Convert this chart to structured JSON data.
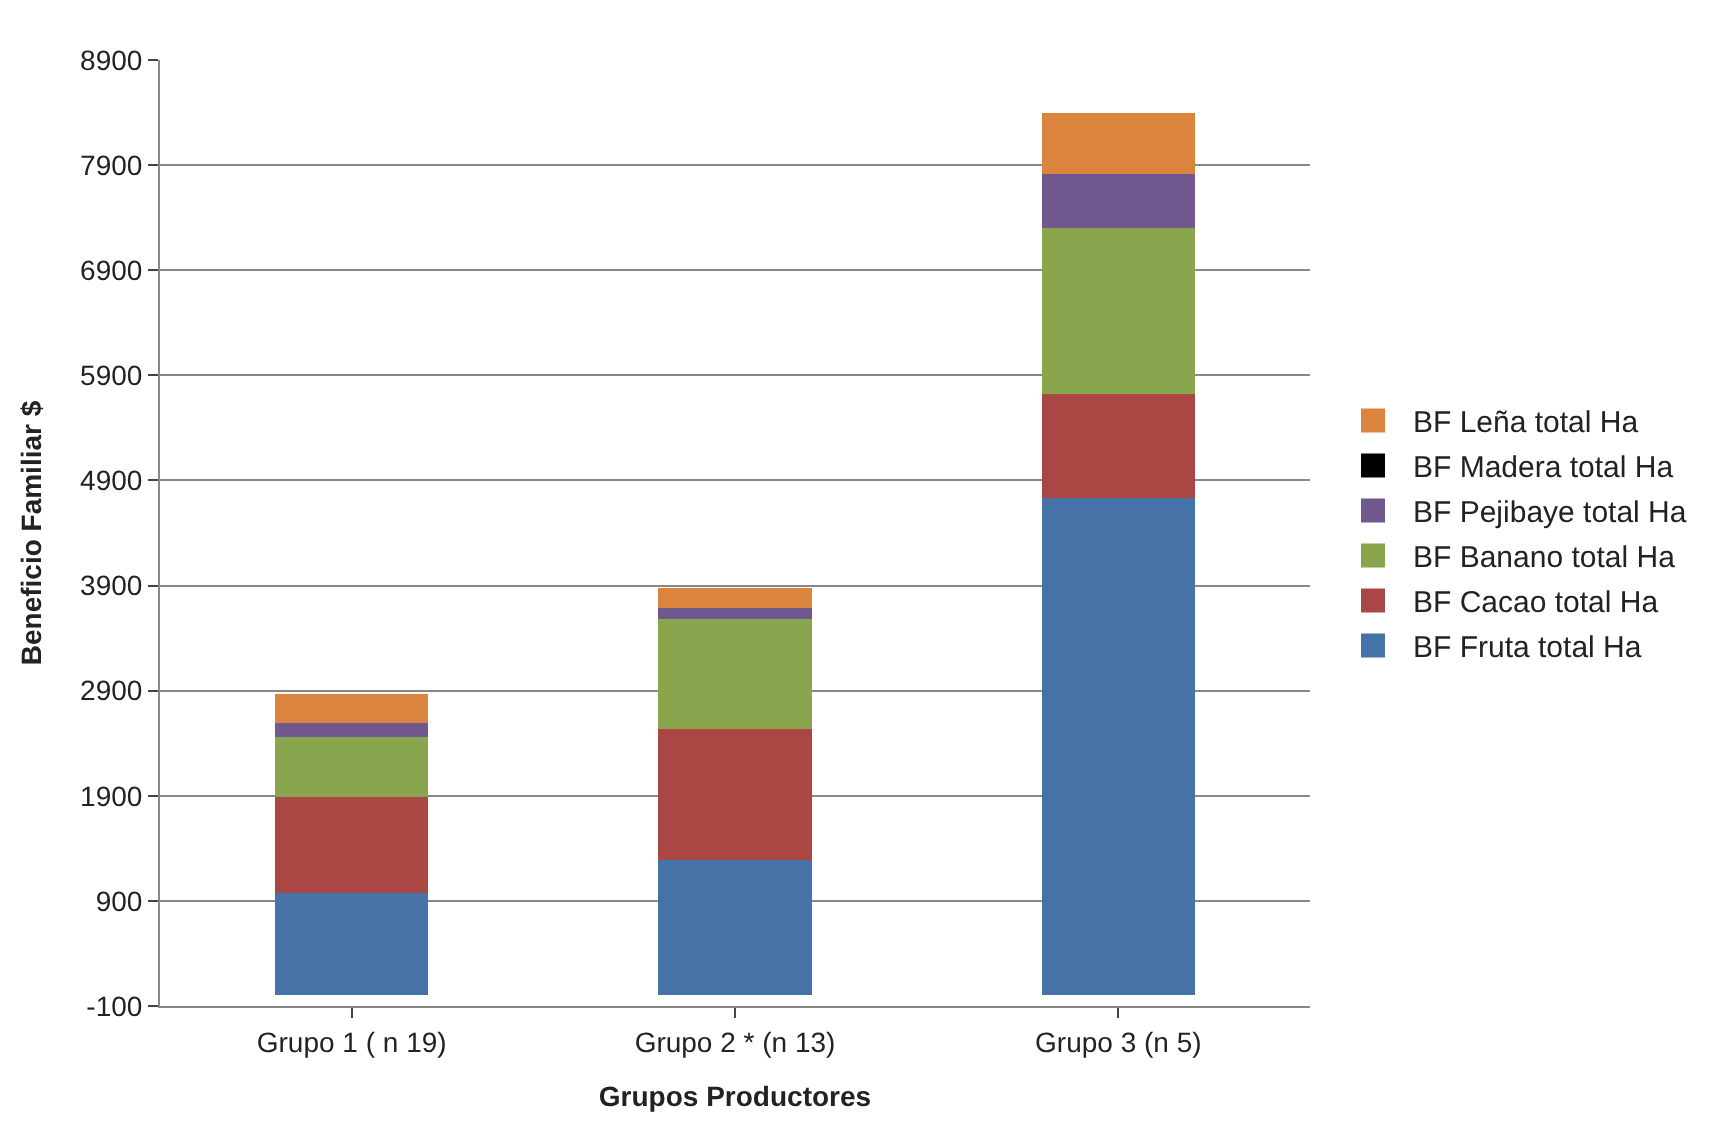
{
  "chart_data": {
    "type": "bar",
    "stacked": true,
    "xlabel": "Grupos Productores",
    "ylabel": "Beneficio Familiar $",
    "categories": [
      "Grupo 1 ( n 19)",
      "Grupo 2 * (n 13)",
      "Grupo 3 (n 5)"
    ],
    "series": [
      {
        "name": "BF Fruta total Ha",
        "color": "#4572a7",
        "values": [
          975,
          1285,
          4730
        ]
      },
      {
        "name": "BF Cacao total Ha",
        "color": "#aa4643",
        "values": [
          915,
          1250,
          995
        ]
      },
      {
        "name": "BF Banano total Ha",
        "color": "#89a54e",
        "values": [
          565,
          1050,
          1575
        ]
      },
      {
        "name": "BF Pejibaye total Ha",
        "color": "#71588f",
        "values": [
          135,
          100,
          515
        ]
      },
      {
        "name": "BF Madera total Ha",
        "color": "#000000",
        "values": [
          0,
          0,
          0
        ]
      },
      {
        "name": "BF Leña total Ha",
        "color": "#db843d",
        "values": [
          275,
          195,
          585
        ]
      }
    ],
    "ylim": [
      -100,
      8900
    ],
    "yticks": [
      -100,
      900,
      1900,
      2900,
      3900,
      4900,
      5900,
      6900,
      7900,
      8900
    ],
    "grid": "y",
    "legend": "right"
  }
}
